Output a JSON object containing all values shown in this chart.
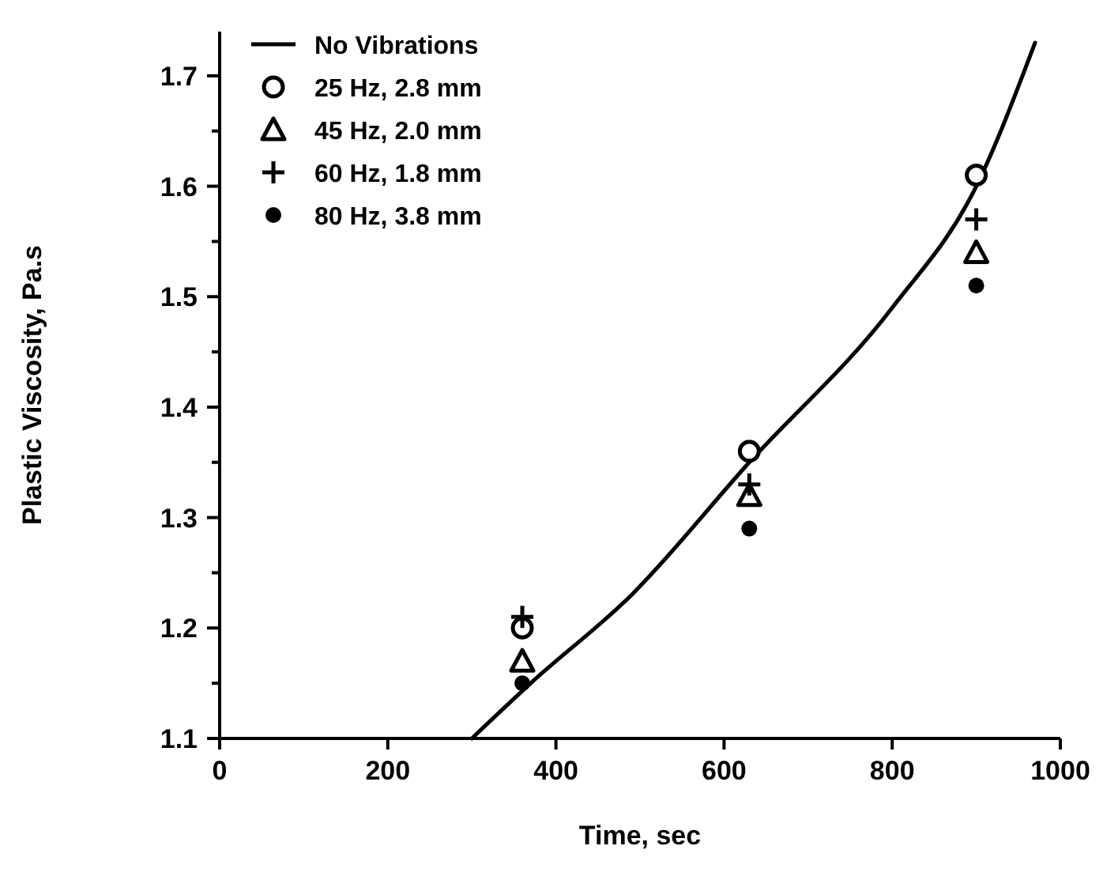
{
  "chart_data": {
    "type": "scatter",
    "xlabel": "Time, sec",
    "ylabel": "Plastic Viscosity, Pa.s",
    "xlim": [
      0,
      1000
    ],
    "xticks": [
      0,
      200,
      400,
      600,
      800,
      1000
    ],
    "ylim": [
      1.1,
      1.74
    ],
    "yticks": [
      1.1,
      {
        "value": 1.15,
        "label": null
      },
      1.2,
      {
        "value": 1.25,
        "label": null
      },
      1.3,
      {
        "value": 1.35,
        "label": null
      },
      1.4,
      {
        "value": 1.45,
        "label": null
      },
      1.5,
      {
        "value": 1.55,
        "label": null
      },
      1.6,
      {
        "value": 1.65,
        "label": null
      },
      1.7
    ],
    "legend": "top left",
    "grid": false,
    "series": [
      {
        "name": "No Vibrations",
        "type": "line",
        "color": "#000000",
        "line_style": "solid",
        "x": [
          300,
          370,
          490,
          630,
          800,
          900,
          970
        ],
        "values": [
          1.1,
          1.15,
          1.23,
          1.35,
          1.49,
          1.6,
          1.73
        ]
      },
      {
        "name": "25 Hz, 2.8 mm",
        "color": "#000000",
        "marker": "circle",
        "x": [
          360,
          630,
          900
        ],
        "values": [
          1.2,
          1.36,
          1.61
        ]
      },
      {
        "name": "45 Hz, 2.0 mm",
        "color": "#000000",
        "marker": "triangle",
        "x": [
          360,
          630,
          900
        ],
        "values": [
          1.17,
          1.32,
          1.54
        ]
      },
      {
        "name": "60 Hz, 1.8 mm",
        "color": "#000000",
        "marker": "cross",
        "x": [
          360,
          630,
          900
        ],
        "values": [
          1.21,
          1.33,
          1.57
        ]
      },
      {
        "name": "80 Hz, 3.8 mm",
        "color": "#000000",
        "marker": "filled-circle",
        "x": [
          360,
          630,
          900
        ],
        "values": [
          1.15,
          1.29,
          1.51
        ]
      }
    ]
  }
}
